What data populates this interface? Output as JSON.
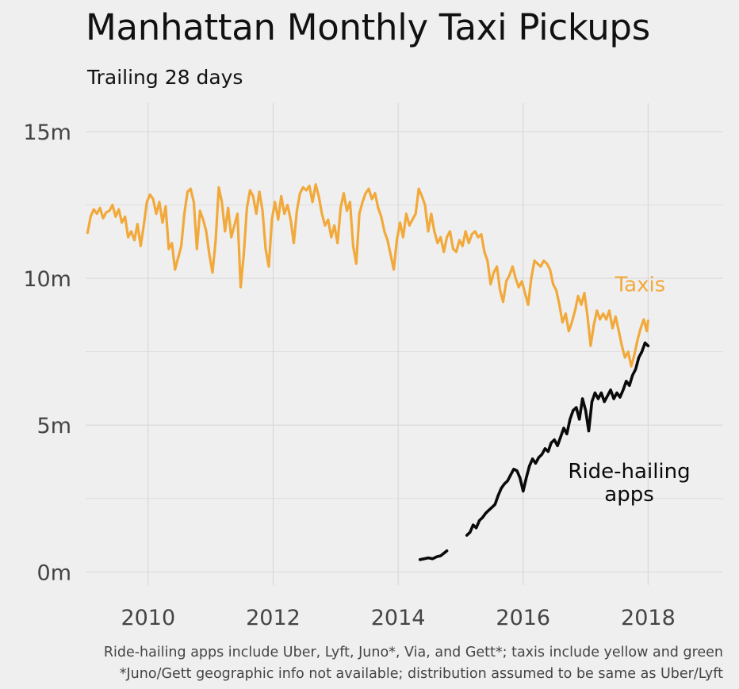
{
  "chart_data": {
    "type": "line",
    "title": "Manhattan Monthly Taxi Pickups",
    "subtitle": "Trailing 28 days",
    "xlabel": "",
    "ylabel": "",
    "xlim": [
      2009.0,
      2019.2
    ],
    "ylim": [
      -0.45,
      15.7
    ],
    "x_ticks": [
      2010,
      2012,
      2014,
      2016,
      2018
    ],
    "x_tick_labels": [
      "2010",
      "2012",
      "2014",
      "2016",
      "2018"
    ],
    "y_ticks": [
      0,
      5,
      10,
      15
    ],
    "y_tick_labels": [
      "0m",
      "5m",
      "10m",
      "15m"
    ],
    "y_minor_gridlines": [
      2.5,
      7.5,
      12.5
    ],
    "grid": true,
    "legend": "none (direct labels)",
    "series": [
      {
        "name": "Taxis",
        "color": "#f2a93b",
        "label_pos": [
          2018.0,
          9.55
        ],
        "points": [
          [
            2009.03,
            11.55
          ],
          [
            2009.08,
            12.1
          ],
          [
            2009.13,
            12.35
          ],
          [
            2009.18,
            12.2
          ],
          [
            2009.23,
            12.4
          ],
          [
            2009.28,
            12.05
          ],
          [
            2009.33,
            12.25
          ],
          [
            2009.38,
            12.3
          ],
          [
            2009.43,
            12.5
          ],
          [
            2009.48,
            12.1
          ],
          [
            2009.53,
            12.35
          ],
          [
            2009.58,
            11.9
          ],
          [
            2009.63,
            12.1
          ],
          [
            2009.68,
            11.4
          ],
          [
            2009.73,
            11.6
          ],
          [
            2009.78,
            11.3
          ],
          [
            2009.83,
            11.85
          ],
          [
            2009.88,
            11.1
          ],
          [
            2009.93,
            11.8
          ],
          [
            2009.98,
            12.6
          ],
          [
            2010.03,
            12.85
          ],
          [
            2010.08,
            12.7
          ],
          [
            2010.13,
            12.2
          ],
          [
            2010.18,
            12.6
          ],
          [
            2010.23,
            11.9
          ],
          [
            2010.28,
            12.45
          ],
          [
            2010.33,
            11.0
          ],
          [
            2010.38,
            11.2
          ],
          [
            2010.43,
            10.3
          ],
          [
            2010.48,
            10.7
          ],
          [
            2010.53,
            11.1
          ],
          [
            2010.58,
            12.2
          ],
          [
            2010.63,
            12.95
          ],
          [
            2010.68,
            13.05
          ],
          [
            2010.73,
            12.6
          ],
          [
            2010.78,
            11.0
          ],
          [
            2010.83,
            12.3
          ],
          [
            2010.88,
            12.0
          ],
          [
            2010.93,
            11.6
          ],
          [
            2010.98,
            10.8
          ],
          [
            2011.03,
            10.2
          ],
          [
            2011.08,
            11.3
          ],
          [
            2011.13,
            13.1
          ],
          [
            2011.18,
            12.6
          ],
          [
            2011.23,
            11.6
          ],
          [
            2011.28,
            12.4
          ],
          [
            2011.33,
            11.4
          ],
          [
            2011.38,
            11.8
          ],
          [
            2011.43,
            12.2
          ],
          [
            2011.48,
            9.7
          ],
          [
            2011.53,
            10.8
          ],
          [
            2011.58,
            12.4
          ],
          [
            2011.63,
            13.0
          ],
          [
            2011.68,
            12.8
          ],
          [
            2011.73,
            12.2
          ],
          [
            2011.78,
            12.95
          ],
          [
            2011.83,
            12.3
          ],
          [
            2011.88,
            11.0
          ],
          [
            2011.93,
            10.4
          ],
          [
            2011.98,
            12.0
          ],
          [
            2012.03,
            12.6
          ],
          [
            2012.08,
            12.0
          ],
          [
            2012.13,
            12.8
          ],
          [
            2012.18,
            12.2
          ],
          [
            2012.23,
            12.5
          ],
          [
            2012.28,
            12.0
          ],
          [
            2012.33,
            11.2
          ],
          [
            2012.38,
            12.3
          ],
          [
            2012.43,
            12.9
          ],
          [
            2012.48,
            13.1
          ],
          [
            2012.53,
            13.0
          ],
          [
            2012.58,
            13.15
          ],
          [
            2012.63,
            12.6
          ],
          [
            2012.68,
            13.2
          ],
          [
            2012.73,
            12.8
          ],
          [
            2012.78,
            12.2
          ],
          [
            2012.83,
            11.8
          ],
          [
            2012.88,
            12.0
          ],
          [
            2012.93,
            11.4
          ],
          [
            2012.98,
            11.8
          ],
          [
            2013.03,
            11.2
          ],
          [
            2013.08,
            12.4
          ],
          [
            2013.13,
            12.9
          ],
          [
            2013.18,
            12.3
          ],
          [
            2013.23,
            12.6
          ],
          [
            2013.28,
            11.1
          ],
          [
            2013.33,
            10.5
          ],
          [
            2013.38,
            12.2
          ],
          [
            2013.43,
            12.6
          ],
          [
            2013.48,
            12.9
          ],
          [
            2013.53,
            13.05
          ],
          [
            2013.58,
            12.7
          ],
          [
            2013.63,
            12.9
          ],
          [
            2013.68,
            12.4
          ],
          [
            2013.73,
            12.1
          ],
          [
            2013.78,
            11.6
          ],
          [
            2013.83,
            11.3
          ],
          [
            2013.88,
            10.8
          ],
          [
            2013.93,
            10.3
          ],
          [
            2013.98,
            11.3
          ],
          [
            2014.03,
            11.9
          ],
          [
            2014.08,
            11.4
          ],
          [
            2014.13,
            12.2
          ],
          [
            2014.18,
            11.8
          ],
          [
            2014.23,
            12.0
          ],
          [
            2014.28,
            12.2
          ],
          [
            2014.33,
            13.05
          ],
          [
            2014.38,
            12.8
          ],
          [
            2014.43,
            12.5
          ],
          [
            2014.48,
            11.6
          ],
          [
            2014.53,
            12.2
          ],
          [
            2014.58,
            11.6
          ],
          [
            2014.63,
            11.2
          ],
          [
            2014.68,
            11.4
          ],
          [
            2014.73,
            10.9
          ],
          [
            2014.78,
            11.4
          ],
          [
            2014.83,
            11.6
          ],
          [
            2014.88,
            11.0
          ],
          [
            2014.93,
            10.9
          ],
          [
            2014.98,
            11.3
          ],
          [
            2015.03,
            11.1
          ],
          [
            2015.08,
            11.6
          ],
          [
            2015.13,
            11.2
          ],
          [
            2015.18,
            11.5
          ],
          [
            2015.23,
            11.6
          ],
          [
            2015.28,
            11.4
          ],
          [
            2015.33,
            11.5
          ],
          [
            2015.38,
            10.9
          ],
          [
            2015.43,
            10.6
          ],
          [
            2015.48,
            9.8
          ],
          [
            2015.53,
            10.2
          ],
          [
            2015.58,
            10.4
          ],
          [
            2015.63,
            9.6
          ],
          [
            2015.68,
            9.2
          ],
          [
            2015.73,
            9.9
          ],
          [
            2015.78,
            10.1
          ],
          [
            2015.83,
            10.4
          ],
          [
            2015.88,
            10.0
          ],
          [
            2015.93,
            9.7
          ],
          [
            2015.98,
            9.9
          ],
          [
            2016.03,
            9.5
          ],
          [
            2016.08,
            9.1
          ],
          [
            2016.13,
            10.0
          ],
          [
            2016.18,
            10.6
          ],
          [
            2016.23,
            10.5
          ],
          [
            2016.28,
            10.4
          ],
          [
            2016.33,
            10.6
          ],
          [
            2016.38,
            10.5
          ],
          [
            2016.43,
            10.3
          ],
          [
            2016.48,
            9.8
          ],
          [
            2016.53,
            9.6
          ],
          [
            2016.58,
            9.1
          ],
          [
            2016.63,
            8.5
          ],
          [
            2016.68,
            8.8
          ],
          [
            2016.73,
            8.2
          ],
          [
            2016.78,
            8.5
          ],
          [
            2016.83,
            8.9
          ],
          [
            2016.88,
            9.4
          ],
          [
            2016.93,
            9.1
          ],
          [
            2016.98,
            9.5
          ],
          [
            2017.03,
            8.7
          ],
          [
            2017.08,
            7.7
          ],
          [
            2017.13,
            8.4
          ],
          [
            2017.18,
            8.9
          ],
          [
            2017.23,
            8.6
          ],
          [
            2017.28,
            8.8
          ],
          [
            2017.33,
            8.6
          ],
          [
            2017.38,
            8.9
          ],
          [
            2017.43,
            8.3
          ],
          [
            2017.48,
            8.7
          ],
          [
            2017.53,
            8.2
          ],
          [
            2017.58,
            7.7
          ],
          [
            2017.63,
            7.3
          ],
          [
            2017.68,
            7.5
          ],
          [
            2017.73,
            7.0
          ],
          [
            2017.78,
            7.4
          ],
          [
            2017.83,
            7.9
          ],
          [
            2017.88,
            8.3
          ],
          [
            2017.93,
            8.6
          ],
          [
            2017.98,
            8.2
          ],
          [
            2018.0,
            8.55
          ]
        ]
      },
      {
        "name": "Ride-hailing apps",
        "label_lines": [
          "Ride-hailing",
          "apps"
        ],
        "color": "#0a0a0a",
        "label_pos": [
          2017.9,
          3.2
        ],
        "segments": [
          [
            [
              2014.35,
              0.42
            ],
            [
              2014.42,
              0.45
            ],
            [
              2014.48,
              0.48
            ],
            [
              2014.55,
              0.45
            ],
            [
              2014.62,
              0.52
            ],
            [
              2014.68,
              0.55
            ],
            [
              2014.74,
              0.65
            ],
            [
              2014.78,
              0.72
            ]
          ],
          [
            [
              2015.1,
              1.25
            ],
            [
              2015.15,
              1.35
            ],
            [
              2015.2,
              1.6
            ],
            [
              2015.25,
              1.5
            ],
            [
              2015.3,
              1.75
            ],
            [
              2015.35,
              1.85
            ],
            [
              2015.4,
              2.0
            ],
            [
              2015.45,
              2.1
            ],
            [
              2015.5,
              2.2
            ],
            [
              2015.55,
              2.3
            ],
            [
              2015.6,
              2.6
            ],
            [
              2015.65,
              2.85
            ],
            [
              2015.7,
              3.0
            ],
            [
              2015.75,
              3.1
            ],
            [
              2015.8,
              3.3
            ],
            [
              2015.85,
              3.5
            ],
            [
              2015.9,
              3.45
            ],
            [
              2015.95,
              3.2
            ],
            [
              2016.0,
              2.75
            ],
            [
              2016.05,
              3.2
            ],
            [
              2016.1,
              3.6
            ],
            [
              2016.15,
              3.85
            ],
            [
              2016.2,
              3.7
            ],
            [
              2016.25,
              3.9
            ],
            [
              2016.3,
              4.0
            ],
            [
              2016.35,
              4.2
            ],
            [
              2016.4,
              4.1
            ],
            [
              2016.45,
              4.4
            ],
            [
              2016.5,
              4.5
            ],
            [
              2016.55,
              4.3
            ],
            [
              2016.6,
              4.6
            ],
            [
              2016.65,
              4.9
            ],
            [
              2016.7,
              4.7
            ],
            [
              2016.75,
              5.2
            ],
            [
              2016.8,
              5.5
            ],
            [
              2016.85,
              5.6
            ],
            [
              2016.9,
              5.2
            ],
            [
              2016.95,
              5.9
            ],
            [
              2017.0,
              5.5
            ],
            [
              2017.05,
              4.8
            ],
            [
              2017.1,
              5.8
            ],
            [
              2017.15,
              6.1
            ],
            [
              2017.2,
              5.9
            ],
            [
              2017.25,
              6.1
            ],
            [
              2017.3,
              5.8
            ],
            [
              2017.35,
              6.0
            ],
            [
              2017.4,
              6.2
            ],
            [
              2017.45,
              5.9
            ],
            [
              2017.5,
              6.1
            ],
            [
              2017.55,
              5.95
            ],
            [
              2017.6,
              6.2
            ],
            [
              2017.65,
              6.5
            ],
            [
              2017.7,
              6.35
            ],
            [
              2017.75,
              6.7
            ],
            [
              2017.8,
              6.9
            ],
            [
              2017.85,
              7.3
            ],
            [
              2017.9,
              7.5
            ],
            [
              2017.95,
              7.8
            ],
            [
              2018.0,
              7.7
            ]
          ]
        ]
      }
    ]
  },
  "captions": {
    "line1": "Ride-hailing apps include Uber, Lyft, Juno*, Via, and Gett*; taxis include yellow and green",
    "line2": "*Juno/Gett geographic info not available; distribution assumed to be same as Uber/Lyft"
  },
  "colors": {
    "background": "#efefef",
    "grid": "#d9d9d9",
    "taxis": "#f2a93b",
    "rideshare": "#0a0a0a"
  }
}
